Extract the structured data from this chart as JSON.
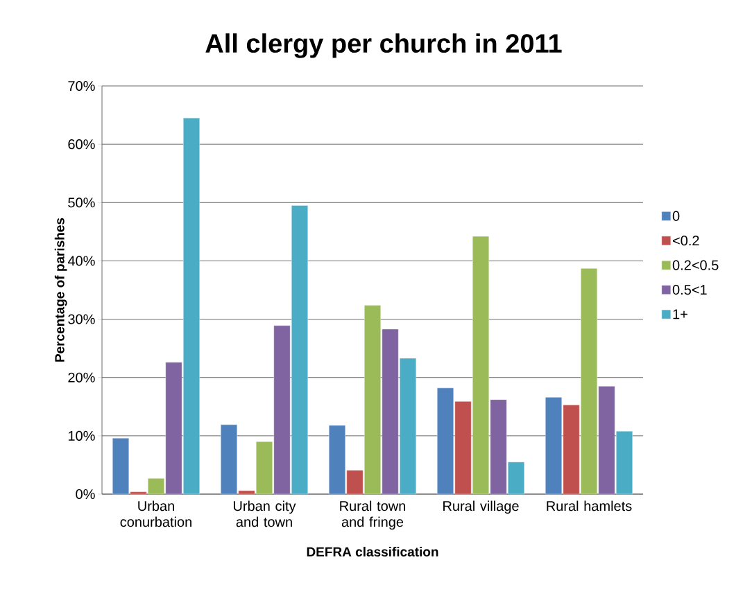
{
  "chart_data": {
    "type": "bar",
    "title": "All clergy per church in 2011",
    "xlabel": "DEFRA classification",
    "ylabel": "Percentage of parishes",
    "categories": [
      "Urban conurbation",
      "Urban city and town",
      "Rural town and fringe",
      "Rural village",
      "Rural hamlets"
    ],
    "series": [
      {
        "name": "0",
        "color": "#4f81bd",
        "values": [
          9.6,
          11.9,
          11.8,
          18.2,
          16.6
        ]
      },
      {
        "name": "<0.2",
        "color": "#c0504d",
        "values": [
          0.4,
          0.6,
          4.1,
          15.9,
          15.3
        ]
      },
      {
        "name": "0.2<0.5",
        "color": "#9bbb59",
        "values": [
          2.7,
          9.0,
          32.4,
          44.2,
          38.7
        ]
      },
      {
        "name": "0.5<1",
        "color": "#8064a2",
        "values": [
          22.6,
          28.9,
          28.3,
          16.2,
          18.5
        ]
      },
      {
        "name": "1+",
        "color": "#4bacc6",
        "values": [
          64.5,
          49.5,
          23.3,
          5.5,
          10.8
        ]
      }
    ],
    "ylim": [
      0,
      70
    ],
    "yticks": [
      {
        "value": 0,
        "label": "0%"
      },
      {
        "value": 10,
        "label": "10%"
      },
      {
        "value": 20,
        "label": "20%"
      },
      {
        "value": 30,
        "label": "30%"
      },
      {
        "value": 40,
        "label": "40%"
      },
      {
        "value": 50,
        "label": "50%"
      },
      {
        "value": 60,
        "label": "60%"
      },
      {
        "value": 70,
        "label": "70%"
      }
    ],
    "grid": "y",
    "legend": "right"
  }
}
